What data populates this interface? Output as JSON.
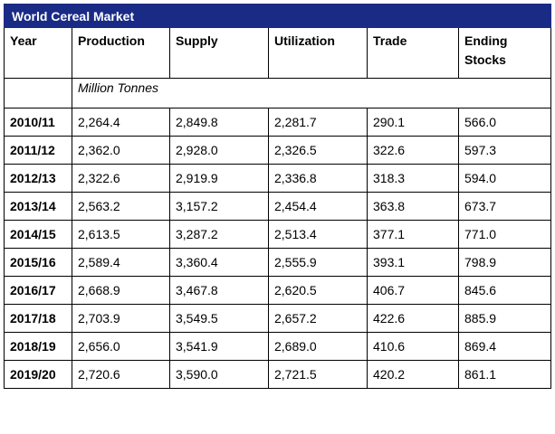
{
  "title": "World Cereal Market",
  "headers": [
    "Year",
    "Production",
    "Supply",
    "Utilization",
    "Trade",
    "Ending Stocks"
  ],
  "unit_note": "Million Tonnes",
  "rows": [
    [
      "2010/11",
      "2,264.4",
      "2,849.8",
      "2,281.7",
      "290.1",
      "566.0"
    ],
    [
      "2011/12",
      "2,362.0",
      "2,928.0",
      "2,326.5",
      "322.6",
      "597.3"
    ],
    [
      "2012/13",
      "2,322.6",
      "2,919.9",
      "2,336.8",
      "318.3",
      "594.0"
    ],
    [
      "2013/14",
      "2,563.2",
      "3,157.2",
      "2,454.4",
      "363.8",
      "673.7"
    ],
    [
      "2014/15",
      "2,613.5",
      "3,287.2",
      "2,513.4",
      "377.1",
      "771.0"
    ],
    [
      "2015/16",
      "2,589.4",
      "3,360.4",
      "2,555.9",
      "393.1",
      "798.9"
    ],
    [
      "2016/17",
      "2,668.9",
      "3,467.8",
      "2,620.5",
      "406.7",
      "845.6"
    ],
    [
      "2017/18",
      "2,703.9",
      "3,549.5",
      "2,657.2",
      "422.6",
      "885.9"
    ],
    [
      "2018/19",
      "2,656.0",
      "3,541.9",
      "2,689.0",
      "410.6",
      "869.4"
    ],
    [
      "2019/20",
      "2,720.6",
      "3,590.0",
      "2,721.5",
      "420.2",
      "861.1"
    ]
  ],
  "colors": {
    "title_background": "#1a2b86",
    "title_text": "#ffffff",
    "border": "#000000"
  }
}
